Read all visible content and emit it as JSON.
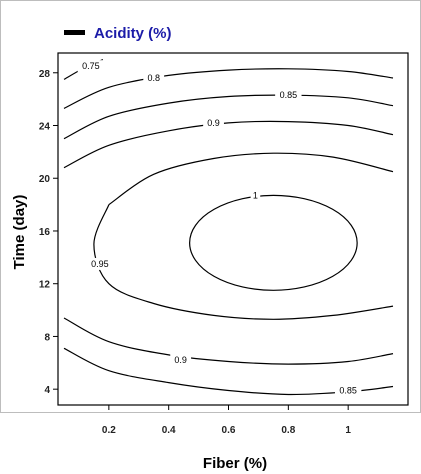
{
  "chart_data": {
    "type": "contour",
    "xlabel": "Fiber (%)",
    "ylabel": "Time (day)",
    "xlim": [
      0.03,
      1.2
    ],
    "ylim": [
      2.8,
      29.5
    ],
    "x_ticks": [
      0.2,
      0.4,
      0.6,
      0.8,
      1
    ],
    "x_tick_labels": [
      "0.2",
      "0.4",
      "0.6",
      "0.8",
      "1"
    ],
    "y_ticks": [
      4,
      8,
      12,
      16,
      20,
      24,
      28
    ],
    "y_tick_labels": [
      "4",
      "8",
      "12",
      "16",
      "20",
      "24",
      "28"
    ],
    "legend": {
      "label": "Acidity (%)",
      "position": "top-left",
      "label_color": "#1c1ca8"
    },
    "contours": [
      {
        "level_label": "0.75",
        "points": [
          [
            0.05,
            27.5
          ],
          [
            0.12,
            28.4
          ],
          [
            0.18,
            29.0
          ]
        ],
        "label_at": [
          0.14,
          28.5
        ]
      },
      {
        "level_label": "0.8",
        "points": [
          [
            0.05,
            25.3
          ],
          [
            0.2,
            26.9
          ],
          [
            0.4,
            27.8
          ],
          [
            0.6,
            28.2
          ],
          [
            0.8,
            28.3
          ],
          [
            1.0,
            28.1
          ],
          [
            1.15,
            27.6
          ]
        ],
        "label_at": [
          0.35,
          27.6
        ]
      },
      {
        "level_label": "0.85",
        "points": [
          [
            0.05,
            23.0
          ],
          [
            0.2,
            24.7
          ],
          [
            0.4,
            25.7
          ],
          [
            0.6,
            26.2
          ],
          [
            0.8,
            26.3
          ],
          [
            1.0,
            26.1
          ],
          [
            1.15,
            25.5
          ]
        ],
        "label_at": [
          0.8,
          26.3
        ]
      },
      {
        "level_label": "0.9",
        "points": [
          [
            0.05,
            20.8
          ],
          [
            0.2,
            22.5
          ],
          [
            0.4,
            23.6
          ],
          [
            0.6,
            24.2
          ],
          [
            0.8,
            24.3
          ],
          [
            1.0,
            24.0
          ],
          [
            1.15,
            23.3
          ]
        ],
        "label_at": [
          0.55,
          24.2
        ]
      },
      {
        "level_label": "0.95",
        "points": [
          [
            0.2,
            18.0
          ],
          [
            0.35,
            20.3
          ],
          [
            0.55,
            21.5
          ],
          [
            0.75,
            21.9
          ],
          [
            0.95,
            21.6
          ],
          [
            1.15,
            20.5
          ]
        ],
        "label_at": [
          0.17,
          13.5
        ]
      },
      {
        "level_label": "0.95",
        "points": [
          [
            1.15,
            10.3
          ],
          [
            0.95,
            9.6
          ],
          [
            0.75,
            9.3
          ],
          [
            0.55,
            9.6
          ],
          [
            0.35,
            10.5
          ],
          [
            0.2,
            12.0
          ],
          [
            0.15,
            15.0
          ],
          [
            0.2,
            18.0
          ]
        ],
        "label_at": [
          0.17,
          13.5
        ]
      },
      {
        "level_label": "1",
        "ellipse": {
          "cx": 0.75,
          "cy": 15.1,
          "rx": 0.28,
          "ry": 3.6
        },
        "label_at": [
          0.69,
          18.7
        ]
      },
      {
        "level_label": "0.9",
        "points": [
          [
            0.05,
            9.4
          ],
          [
            0.2,
            7.6
          ],
          [
            0.4,
            6.6
          ],
          [
            0.6,
            6.1
          ],
          [
            0.8,
            5.9
          ],
          [
            1.0,
            6.1
          ],
          [
            1.15,
            6.7
          ]
        ],
        "label_at": [
          0.44,
          6.2
        ]
      },
      {
        "level_label": "0.85",
        "points": [
          [
            0.05,
            7.1
          ],
          [
            0.2,
            5.4
          ],
          [
            0.4,
            4.5
          ],
          [
            0.6,
            3.9
          ],
          [
            0.8,
            3.6
          ],
          [
            1.0,
            3.8
          ],
          [
            1.15,
            4.2
          ]
        ],
        "label_at": [
          1.0,
          3.9
        ]
      }
    ],
    "grid": false
  }
}
